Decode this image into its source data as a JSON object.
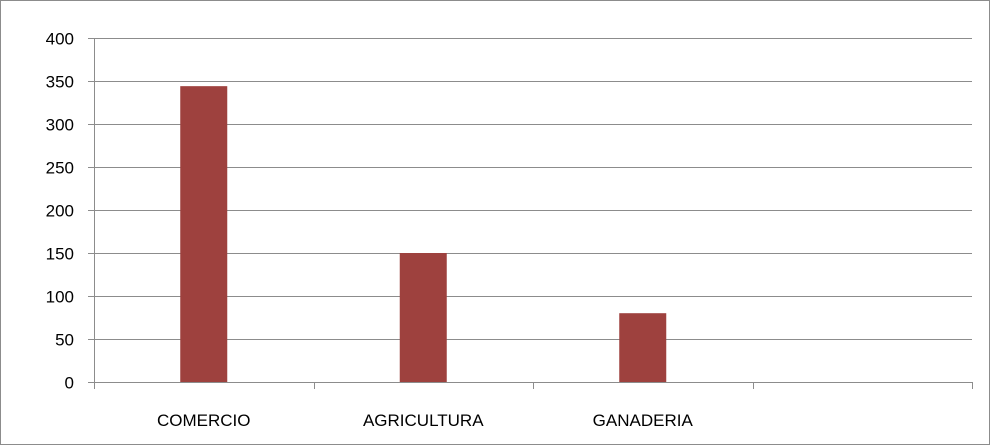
{
  "chart_data": {
    "type": "bar",
    "categories": [
      "COMERCIO",
      "AGRICULTURA",
      "GANADERIA",
      ""
    ],
    "series": [
      {
        "values": [
          344,
          150,
          80,
          null
        ],
        "color": "#9e413e"
      }
    ],
    "ylim": [
      0,
      400
    ],
    "yticks": [
      "0",
      "50",
      "100",
      "150",
      "200",
      "250",
      "300",
      "350",
      "400"
    ],
    "grid": true,
    "legend": "none",
    "gridline_color": "#8c8c8c",
    "axis_color": "#8c8c8c"
  }
}
